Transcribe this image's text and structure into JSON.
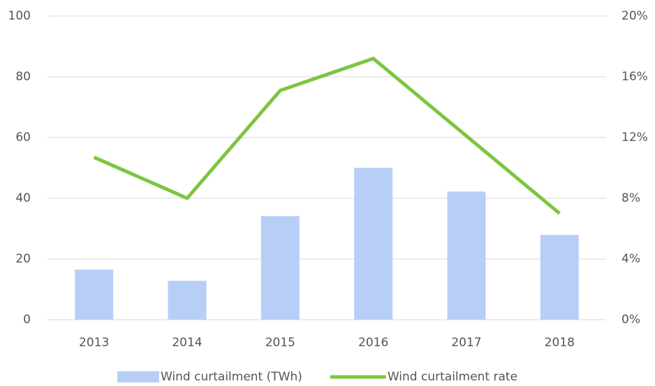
{
  "chart_data": {
    "type": "bar",
    "categories": [
      "2013",
      "2014",
      "2015",
      "2016",
      "2017",
      "2018"
    ],
    "series": [
      {
        "name": "Wind curtailment (TWh)",
        "type": "bar",
        "color": "#b7cff7",
        "values": [
          16.5,
          12.8,
          34.1,
          50,
          42.2,
          27.9
        ]
      },
      {
        "name": "Wind curtailment rate",
        "type": "line",
        "axis": "y2",
        "color": "#7dc540",
        "values": [
          10.7,
          8,
          15.1,
          17.2,
          12.1,
          7
        ]
      }
    ],
    "ylim": [
      0,
      100
    ],
    "yticks": [
      0,
      20,
      40,
      60,
      80,
      100
    ],
    "y2lim": [
      0,
      20
    ],
    "y2ticks": [
      {
        "value": 0,
        "label": "0%"
      },
      {
        "value": 4,
        "label": "4%"
      },
      {
        "value": 8,
        "label": "8%"
      },
      {
        "value": 12,
        "label": "12%"
      },
      {
        "value": 16,
        "label": "16%"
      },
      {
        "value": 20,
        "label": "20%"
      }
    ],
    "grid": true,
    "legend": "bottom"
  }
}
